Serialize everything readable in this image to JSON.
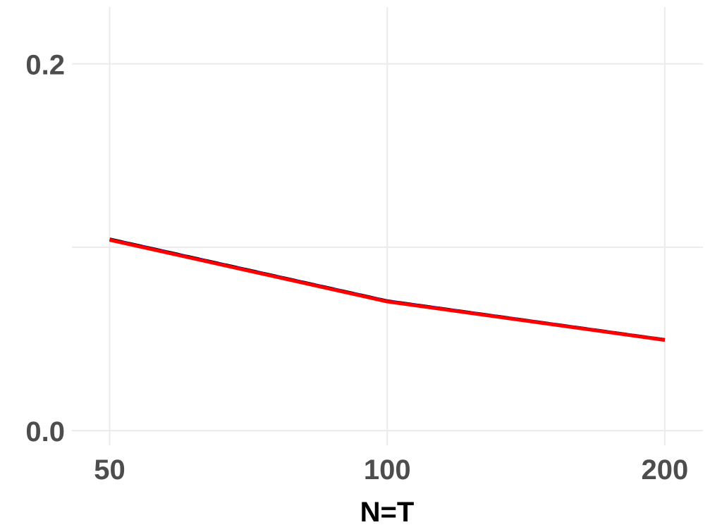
{
  "chart_data": {
    "type": "line",
    "title": "",
    "xlabel": "N=T",
    "ylabel": "",
    "x": [
      50,
      100,
      200
    ],
    "x_tick_labels": [
      "50",
      "100",
      "200"
    ],
    "y_tick_labels": [
      "0.0",
      "0.2"
    ],
    "y_ticks": [
      0.0,
      0.2
    ],
    "y_minor_gridlines": [
      0.1
    ],
    "ylim": [
      -0.008,
      0.231
    ],
    "grid": true,
    "legend": "none",
    "series": [
      {
        "values": [
          0.1043,
          0.0706,
          0.0495
        ],
        "color": "#00008b",
        "style": "solid"
      },
      {
        "values": [
          0.1043,
          0.0706,
          0.0495
        ],
        "color": "#000000",
        "style": "dashed"
      },
      {
        "values": [
          0.104,
          0.0704,
          0.0494
        ],
        "color": "#ff0000",
        "style": "solid"
      }
    ]
  }
}
